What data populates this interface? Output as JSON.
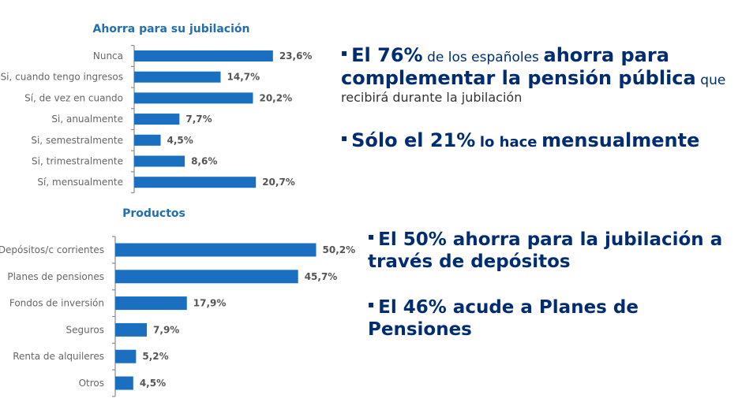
{
  "chart_data": [
    {
      "type": "bar",
      "orientation": "horizontal",
      "title": "Ahorra para su jubilación",
      "categories": [
        "Nunca",
        "Si, cuando tengo ingresos",
        "Sí, de vez en cuando",
        "Si, anualmente",
        "Si, semestralmente",
        "Si, trimestralmente",
        "Sí, mensualmente"
      ],
      "values": [
        23.6,
        14.7,
        20.2,
        7.7,
        4.5,
        8.6,
        20.7
      ],
      "value_labels": [
        "23,6%",
        "14,7%",
        "20,2%",
        "7,7%",
        "4,5%",
        "8,6%",
        "20,7%"
      ],
      "xlabel": "",
      "ylabel": "",
      "xlim": [
        0,
        100
      ],
      "color": "#1a6fc0"
    },
    {
      "type": "bar",
      "orientation": "horizontal",
      "title": "Productos",
      "categories": [
        "Depósitos/c corrientes",
        "Planes de pensiones",
        "Fondos de  inversión",
        "Seguros",
        "Renta de alquileres",
        "Otros"
      ],
      "values": [
        50.2,
        45.7,
        17.9,
        7.9,
        5.2,
        4.5
      ],
      "value_labels": [
        "50,2%",
        "45,7%",
        "17,9%",
        "7,9%",
        "5,2%",
        "4,5%"
      ],
      "xlabel": "",
      "ylabel": "",
      "xlim": [
        0,
        100
      ],
      "color": "#1a6fc0"
    }
  ],
  "bullets": {
    "b1": {
      "marker": "▪",
      "part1": "El 76%",
      "part2": "de los españoles",
      "part3": "ahorra para complementar la pensión pública",
      "part4": "que",
      "part5": "recibirá durante la jubilación"
    },
    "b2": {
      "marker": "▪",
      "part1": "Sólo el 21%",
      "part2": "lo hace",
      "part3": "mensualmente"
    },
    "b3": {
      "marker": "▪",
      "text": "El 50% ahorra para la jubilación a través de depósitos"
    },
    "b4": {
      "marker": "▪",
      "text": "El 46% acude a Planes de Pensiones"
    }
  },
  "colors": {
    "bar": "#1a6fc0",
    "title": "#1f6fb2",
    "bullet_text": "#002d72"
  }
}
